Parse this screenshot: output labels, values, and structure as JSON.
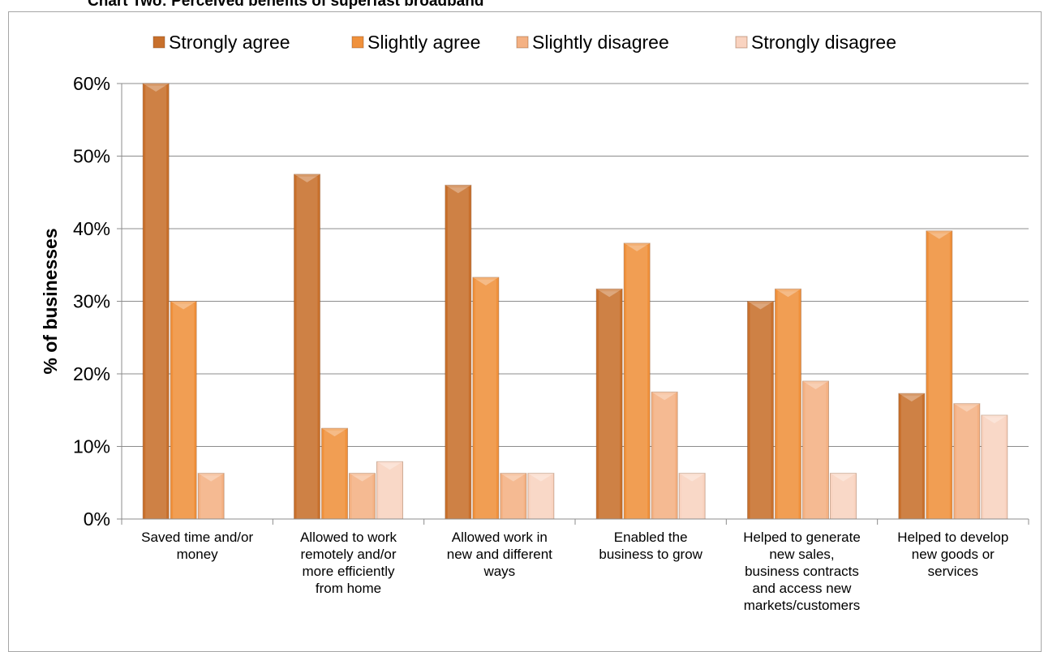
{
  "chart_title": "Chart Two: Perceived benefits of superfast broadband",
  "chart_data": {
    "type": "bar",
    "title": "Chart Two: Perceived benefits of superfast broadband",
    "xlabel": "",
    "ylabel": "% of businesses",
    "ylim": [
      0,
      60
    ],
    "y_ticks": [
      "0%",
      "10%",
      "20%",
      "30%",
      "40%",
      "50%",
      "60%"
    ],
    "legend_position": "top",
    "grid": true,
    "categories": [
      [
        "Saved time and/or",
        "money"
      ],
      [
        "Allowed to work",
        "remotely and/or",
        "more efficiently",
        "from home"
      ],
      [
        "Allowed work in",
        "new and different",
        "ways"
      ],
      [
        "Enabled the",
        "business to grow"
      ],
      [
        "Helped to generate",
        "new sales,",
        "business contracts",
        "and access new",
        "markets/customers"
      ],
      [
        "Helped to develop",
        "new goods or",
        "services"
      ]
    ],
    "series": [
      {
        "name": "Strongly agree",
        "color": "#c8702c",
        "values": [
          60,
          47.5,
          46,
          31.7,
          30,
          17.3
        ]
      },
      {
        "name": "Slightly agree",
        "color": "#f0913c",
        "values": [
          30,
          12.5,
          33.3,
          38,
          31.7,
          39.7
        ]
      },
      {
        "name": "Slightly disagree",
        "color": "#f4b183",
        "values": [
          6.3,
          6.3,
          6.3,
          17.5,
          19,
          15.9
        ]
      },
      {
        "name": "Strongly disagree",
        "color": "#f9d3c0",
        "values": [
          0,
          7.9,
          6.3,
          6.3,
          6.3,
          14.3
        ]
      }
    ]
  }
}
